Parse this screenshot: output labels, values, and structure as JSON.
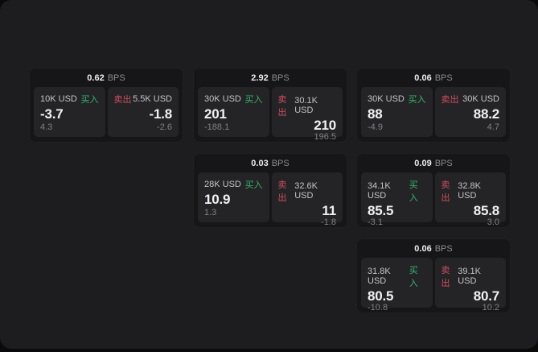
{
  "labels": {
    "bps_unit": "BPS",
    "buy": "买入",
    "sell": "卖出"
  },
  "colors": {
    "panel_bg": "#1d1d1f",
    "card_bg": "#161618",
    "tile_bg": "#242427",
    "buy_green": "#35b56a",
    "sell_red": "#d04d5e"
  },
  "cards": [
    {
      "bps": "0.62",
      "buy": {
        "amount": "10K USD",
        "price": "-3.7",
        "delta": "4.3"
      },
      "sell": {
        "amount": "5.5K USD",
        "price": "-1.8",
        "delta": "-2.6"
      }
    },
    {
      "bps": "2.92",
      "buy": {
        "amount": "30K USD",
        "price": "201",
        "delta": "-188.1"
      },
      "sell": {
        "amount": "30.1K USD",
        "price": "210",
        "delta": "196.5"
      }
    },
    {
      "bps": "0.06",
      "buy": {
        "amount": "30K USD",
        "price": "88",
        "delta": "-4.9"
      },
      "sell": {
        "amount": "30K USD",
        "price": "88.2",
        "delta": "4.7"
      }
    },
    {
      "bps": "0.03",
      "buy": {
        "amount": "28K USD",
        "price": "10.9",
        "delta": "1.3"
      },
      "sell": {
        "amount": "32.6K USD",
        "price": "11",
        "delta": "-1.8"
      }
    },
    {
      "bps": "0.09",
      "buy": {
        "amount": "34.1K USD",
        "price": "85.5",
        "delta": "-3.1"
      },
      "sell": {
        "amount": "32.8K USD",
        "price": "85.8",
        "delta": "3.0"
      }
    },
    {
      "bps": "0.06",
      "buy": {
        "amount": "31.8K USD",
        "price": "80.5",
        "delta": "-10.8"
      },
      "sell": {
        "amount": "39.1K USD",
        "price": "80.7",
        "delta": "10.2"
      }
    }
  ]
}
